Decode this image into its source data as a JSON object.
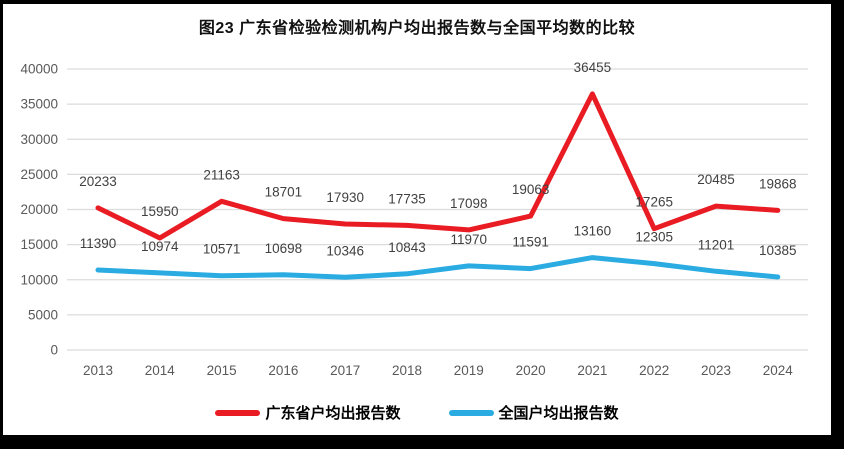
{
  "title": "图23  广东省检验检测机构户均出报告数与全国平均数的比较",
  "chart_data": {
    "type": "line",
    "title": "图23  广东省检验检测机构户均出报告数与全国平均数的比较",
    "categories": [
      "2013",
      "2014",
      "2015",
      "2016",
      "2017",
      "2018",
      "2019",
      "2020",
      "2021",
      "2022",
      "2023",
      "2024"
    ],
    "series": [
      {
        "key": "guangdong",
        "name": "广东省户均出报告数",
        "color": "#e91b23",
        "values": [
          20233,
          15950,
          21163,
          18701,
          17930,
          17735,
          17098,
          19063,
          36455,
          17265,
          20485,
          19868
        ]
      },
      {
        "key": "national",
        "name": "全国户均出报告数",
        "color": "#2aabe2",
        "values": [
          11390,
          10974,
          10571,
          10698,
          10346,
          10843,
          11970,
          11591,
          13160,
          12305,
          11201,
          10385
        ]
      }
    ],
    "xlabel": "",
    "ylabel": "",
    "ylim": [
      0,
      40000
    ],
    "ytick_step": 5000,
    "ytick_labels": [
      "0",
      "5000",
      "10000",
      "15000",
      "20000",
      "25000",
      "30000",
      "35000",
      "40000"
    ],
    "grid": "horizontal-only",
    "show_data_labels": true,
    "legend_position": "bottom",
    "colors": {
      "gridline": "#dcdcdc",
      "axis_label": "#595959",
      "data_label": "#404040",
      "background": "#ffffff",
      "frame_border": "#000000"
    }
  }
}
